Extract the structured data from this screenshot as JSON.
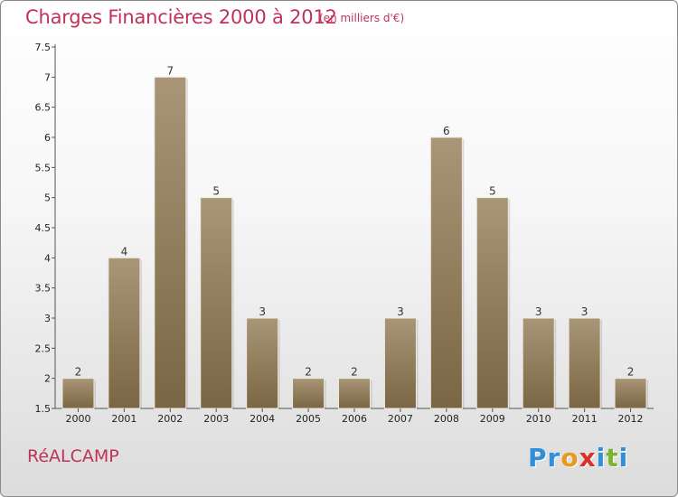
{
  "header": {
    "title": "Charges Financières 2000 à 2012",
    "subtitle": "(en milliers d'€)"
  },
  "footer": {
    "city": "RéALCAMP",
    "brand": "Proxiti",
    "brand_letters": [
      {
        "ch": "P",
        "color": "#2f8fd8"
      },
      {
        "ch": "r",
        "color": "#2f8fd8"
      },
      {
        "ch": "o",
        "color": "#e89a1c"
      },
      {
        "ch": "x",
        "color": "#d9312b"
      },
      {
        "ch": "i",
        "color": "#2f8fd8"
      },
      {
        "ch": "t",
        "color": "#7ab52f"
      },
      {
        "ch": "i",
        "color": "#2f8fd8"
      }
    ]
  },
  "colors": {
    "title": "#c0325a",
    "bar_light": "#a89676",
    "bar_dark": "#7a6645"
  },
  "chart_data": {
    "type": "bar",
    "categories": [
      "2000",
      "2001",
      "2002",
      "2003",
      "2004",
      "2005",
      "2006",
      "2007",
      "2008",
      "2009",
      "2010",
      "2011",
      "2012"
    ],
    "values": [
      2,
      4,
      7,
      5,
      3,
      2,
      2,
      3,
      6,
      5,
      3,
      3,
      2
    ],
    "data_labels": [
      "2",
      "4",
      "7",
      "5",
      "3",
      "2",
      "2",
      "3",
      "6",
      "5",
      "3",
      "3",
      "2"
    ],
    "ylim": [
      1.5,
      7.5
    ],
    "yticks": [
      "1.5",
      "2",
      "2.5",
      "3",
      "3.5",
      "4",
      "4.5",
      "5",
      "5.5",
      "6",
      "6.5",
      "7",
      "7.5"
    ],
    "grid": false,
    "title": "Charges Financières 2000 à 2012",
    "xlabel": "",
    "ylabel": ""
  }
}
